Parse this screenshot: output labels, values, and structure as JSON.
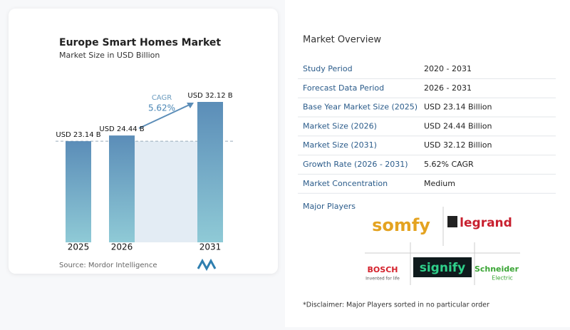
{
  "chart_data": {
    "type": "bar",
    "title": "Europe Smart Homes Market",
    "subtitle": "Market Size in USD Billion",
    "categories": [
      "2025",
      "2026",
      "2031"
    ],
    "values": [
      23.14,
      24.44,
      32.12
    ],
    "value_labels": [
      "USD 23.14 B",
      "USD 24.44 B",
      "USD 32.12 B"
    ],
    "annotation": {
      "label": "CAGR",
      "value": "5.62%"
    },
    "source": "Source:  Mordor Intelligence"
  },
  "overview": {
    "title": "Market Overview",
    "rows": [
      [
        "Study Period",
        "2020 - 2031"
      ],
      [
        "Forecast Data Period",
        "2026 - 2031"
      ],
      [
        "Base Year Market Size (2025)",
        "USD 23.14 Billion"
      ],
      [
        "Market Size (2026)",
        "USD 24.44 Billion"
      ],
      [
        "Market Size (2031)",
        "USD 32.12 Billion"
      ],
      [
        "Growth Rate (2026 - 2031)",
        "5.62% CAGR"
      ],
      [
        "Market Concentration",
        "Medium"
      ]
    ]
  },
  "players": {
    "title": "Major Players",
    "somfy": "somfy",
    "legrand": "legrand",
    "bosch": "BOSCH",
    "bosch_tag": "Invented for life",
    "signify": "signify",
    "schneider": "Schneider",
    "schneider_tag": "Electric"
  },
  "disclaimer": "*Disclaimer: Major Players sorted in no particular order"
}
